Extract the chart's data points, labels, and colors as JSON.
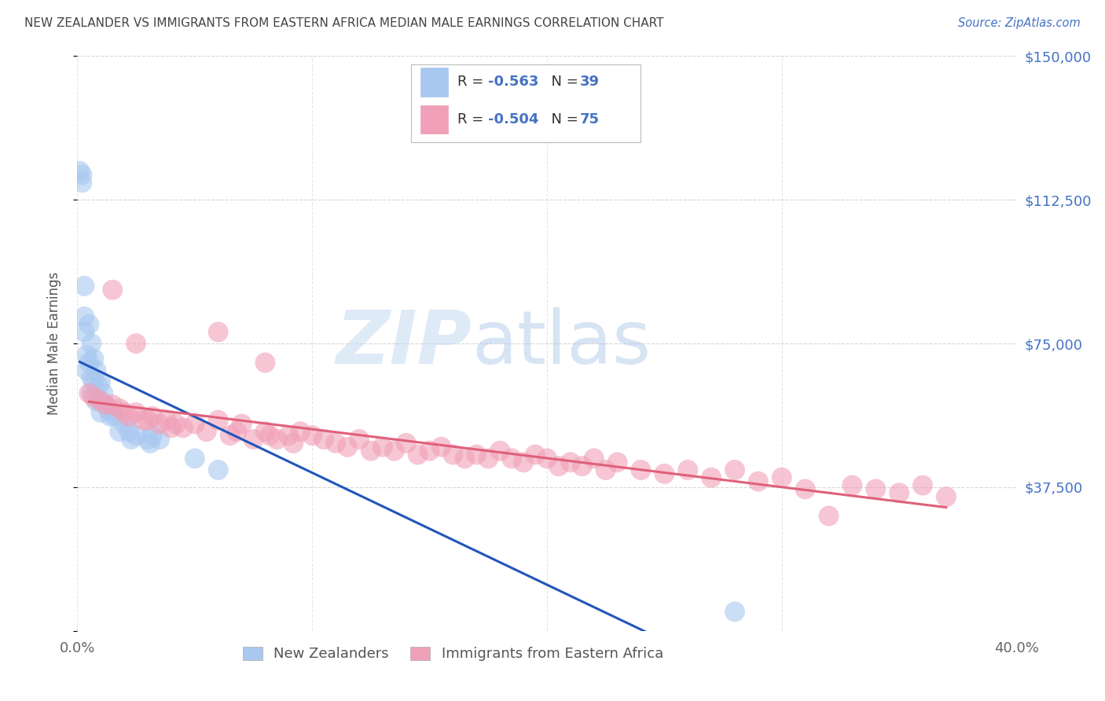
{
  "title": "NEW ZEALANDER VS IMMIGRANTS FROM EASTERN AFRICA MEDIAN MALE EARNINGS CORRELATION CHART",
  "source": "Source: ZipAtlas.com",
  "ylabel": "Median Male Earnings",
  "nz_color": "#a8c8f0",
  "ea_color": "#f0a0b8",
  "nz_line_color": "#2255bb",
  "ea_line_color": "#e0607a",
  "background": "#ffffff",
  "grid_color": "#cccccc",
  "title_color": "#444444",
  "right_axis_color": "#4472c4",
  "legend_text_color": "#4472c4",
  "watermark_zip_color": "#c8ddf0",
  "watermark_atlas_color": "#9fbfe0",
  "nz_scatter_x": [
    0.001,
    0.002,
    0.002,
    0.003,
    0.003,
    0.004,
    0.004,
    0.005,
    0.005,
    0.006,
    0.006,
    0.006,
    0.007,
    0.007,
    0.008,
    0.008,
    0.009,
    0.01,
    0.01,
    0.01,
    0.011,
    0.012,
    0.013,
    0.014,
    0.015,
    0.016,
    0.018,
    0.02,
    0.022,
    0.023,
    0.025,
    0.03,
    0.031,
    0.032,
    0.035,
    0.05,
    0.06,
    0.28,
    0.003
  ],
  "nz_scatter_y": [
    120000,
    119000,
    117000,
    82000,
    78000,
    72000,
    68000,
    80000,
    70000,
    75000,
    66000,
    62000,
    71000,
    65000,
    68000,
    60000,
    64000,
    65000,
    60000,
    57000,
    62000,
    59000,
    58000,
    56000,
    57000,
    56000,
    52000,
    54000,
    52000,
    50000,
    51000,
    50000,
    49000,
    51000,
    50000,
    45000,
    42000,
    5000,
    90000
  ],
  "ea_scatter_x": [
    0.005,
    0.007,
    0.01,
    0.012,
    0.015,
    0.018,
    0.02,
    0.022,
    0.025,
    0.028,
    0.03,
    0.032,
    0.035,
    0.038,
    0.04,
    0.042,
    0.045,
    0.05,
    0.055,
    0.06,
    0.065,
    0.068,
    0.07,
    0.075,
    0.08,
    0.082,
    0.085,
    0.09,
    0.092,
    0.095,
    0.1,
    0.105,
    0.11,
    0.115,
    0.12,
    0.125,
    0.13,
    0.135,
    0.14,
    0.145,
    0.15,
    0.155,
    0.16,
    0.165,
    0.17,
    0.175,
    0.18,
    0.185,
    0.19,
    0.195,
    0.2,
    0.205,
    0.21,
    0.215,
    0.22,
    0.225,
    0.23,
    0.24,
    0.25,
    0.26,
    0.27,
    0.28,
    0.29,
    0.3,
    0.31,
    0.33,
    0.34,
    0.35,
    0.36,
    0.37,
    0.015,
    0.025,
    0.06,
    0.08,
    0.32
  ],
  "ea_scatter_y": [
    62000,
    61000,
    60000,
    59000,
    59000,
    58000,
    57000,
    56000,
    57000,
    55000,
    55000,
    56000,
    54000,
    55000,
    53000,
    54000,
    53000,
    54000,
    52000,
    55000,
    51000,
    52000,
    54000,
    50000,
    52000,
    51000,
    50000,
    51000,
    49000,
    52000,
    51000,
    50000,
    49000,
    48000,
    50000,
    47000,
    48000,
    47000,
    49000,
    46000,
    47000,
    48000,
    46000,
    45000,
    46000,
    45000,
    47000,
    45000,
    44000,
    46000,
    45000,
    43000,
    44000,
    43000,
    45000,
    42000,
    44000,
    42000,
    41000,
    42000,
    40000,
    42000,
    39000,
    40000,
    37000,
    38000,
    37000,
    36000,
    38000,
    35000,
    89000,
    75000,
    78000,
    70000,
    30000
  ]
}
